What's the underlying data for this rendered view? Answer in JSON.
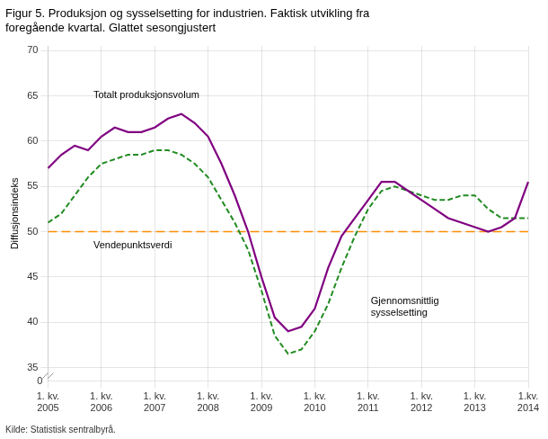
{
  "chart_data": {
    "type": "line",
    "title": [
      "Figur 5. Produksjon og sysselsetting for industrien. Faktisk utvikling fra",
      "foregående kvartal. Glattet sesongjustert"
    ],
    "y_label": "Diffusjonsindeks",
    "source": "Kilde: Statistisk sentralbyrå.",
    "categories": [
      "1. kv.\n2005",
      null,
      null,
      null,
      "1. kv.\n2006",
      null,
      null,
      null,
      "1. kv.\n2007",
      null,
      null,
      null,
      "1. kv.\n2008",
      null,
      null,
      null,
      "1. kv.\n2009",
      null,
      null,
      null,
      "1. kv.\n2010",
      null,
      null,
      null,
      "1. kv.\n2011",
      null,
      null,
      null,
      "1. kv.\n2012",
      null,
      null,
      null,
      "1. kv.\n2013",
      null,
      null,
      null,
      "1.kv.\n2014"
    ],
    "series": [
      {
        "color": "#800080",
        "line_style": "solid",
        "annotation": "Totalt produksjonsvolum",
        "values": [
          57.0,
          58.5,
          59.5,
          59.0,
          60.5,
          61.5,
          61.0,
          61.0,
          61.5,
          62.5,
          63.0,
          62.0,
          60.5,
          57.5,
          54.0,
          50.0,
          45.0,
          40.5,
          39.0,
          39.5,
          41.5,
          46.0,
          49.5,
          51.5,
          53.5,
          55.5,
          55.5,
          54.5,
          53.5,
          52.5,
          51.5,
          51.0,
          50.5,
          50.0,
          50.5,
          51.5,
          55.5
        ]
      },
      {
        "color": "#228B22",
        "line_style": "dashed",
        "annotation": "Gjennomsnittlig\nsysselsetting",
        "values": [
          51.0,
          52.0,
          54.0,
          56.0,
          57.5,
          58.0,
          58.5,
          58.5,
          59.0,
          59.0,
          58.5,
          57.5,
          56.0,
          53.5,
          51.0,
          48.0,
          43.5,
          38.5,
          36.5,
          37.0,
          39.0,
          42.0,
          46.0,
          49.5,
          52.5,
          54.5,
          55.0,
          54.5,
          54.0,
          53.5,
          53.5,
          54.0,
          54.0,
          52.5,
          51.5,
          51.5,
          51.5
        ]
      }
    ],
    "reference_line": {
      "value": 50,
      "color": "#FF8C00",
      "line_style": "dashed",
      "annotation": "Vendepunktsverdi"
    },
    "ylim": [
      33.5,
      70.5
    ],
    "yticks": [
      35,
      40,
      45,
      50,
      55,
      60,
      65,
      70
    ],
    "axis_break_label": "0",
    "grid": true
  }
}
